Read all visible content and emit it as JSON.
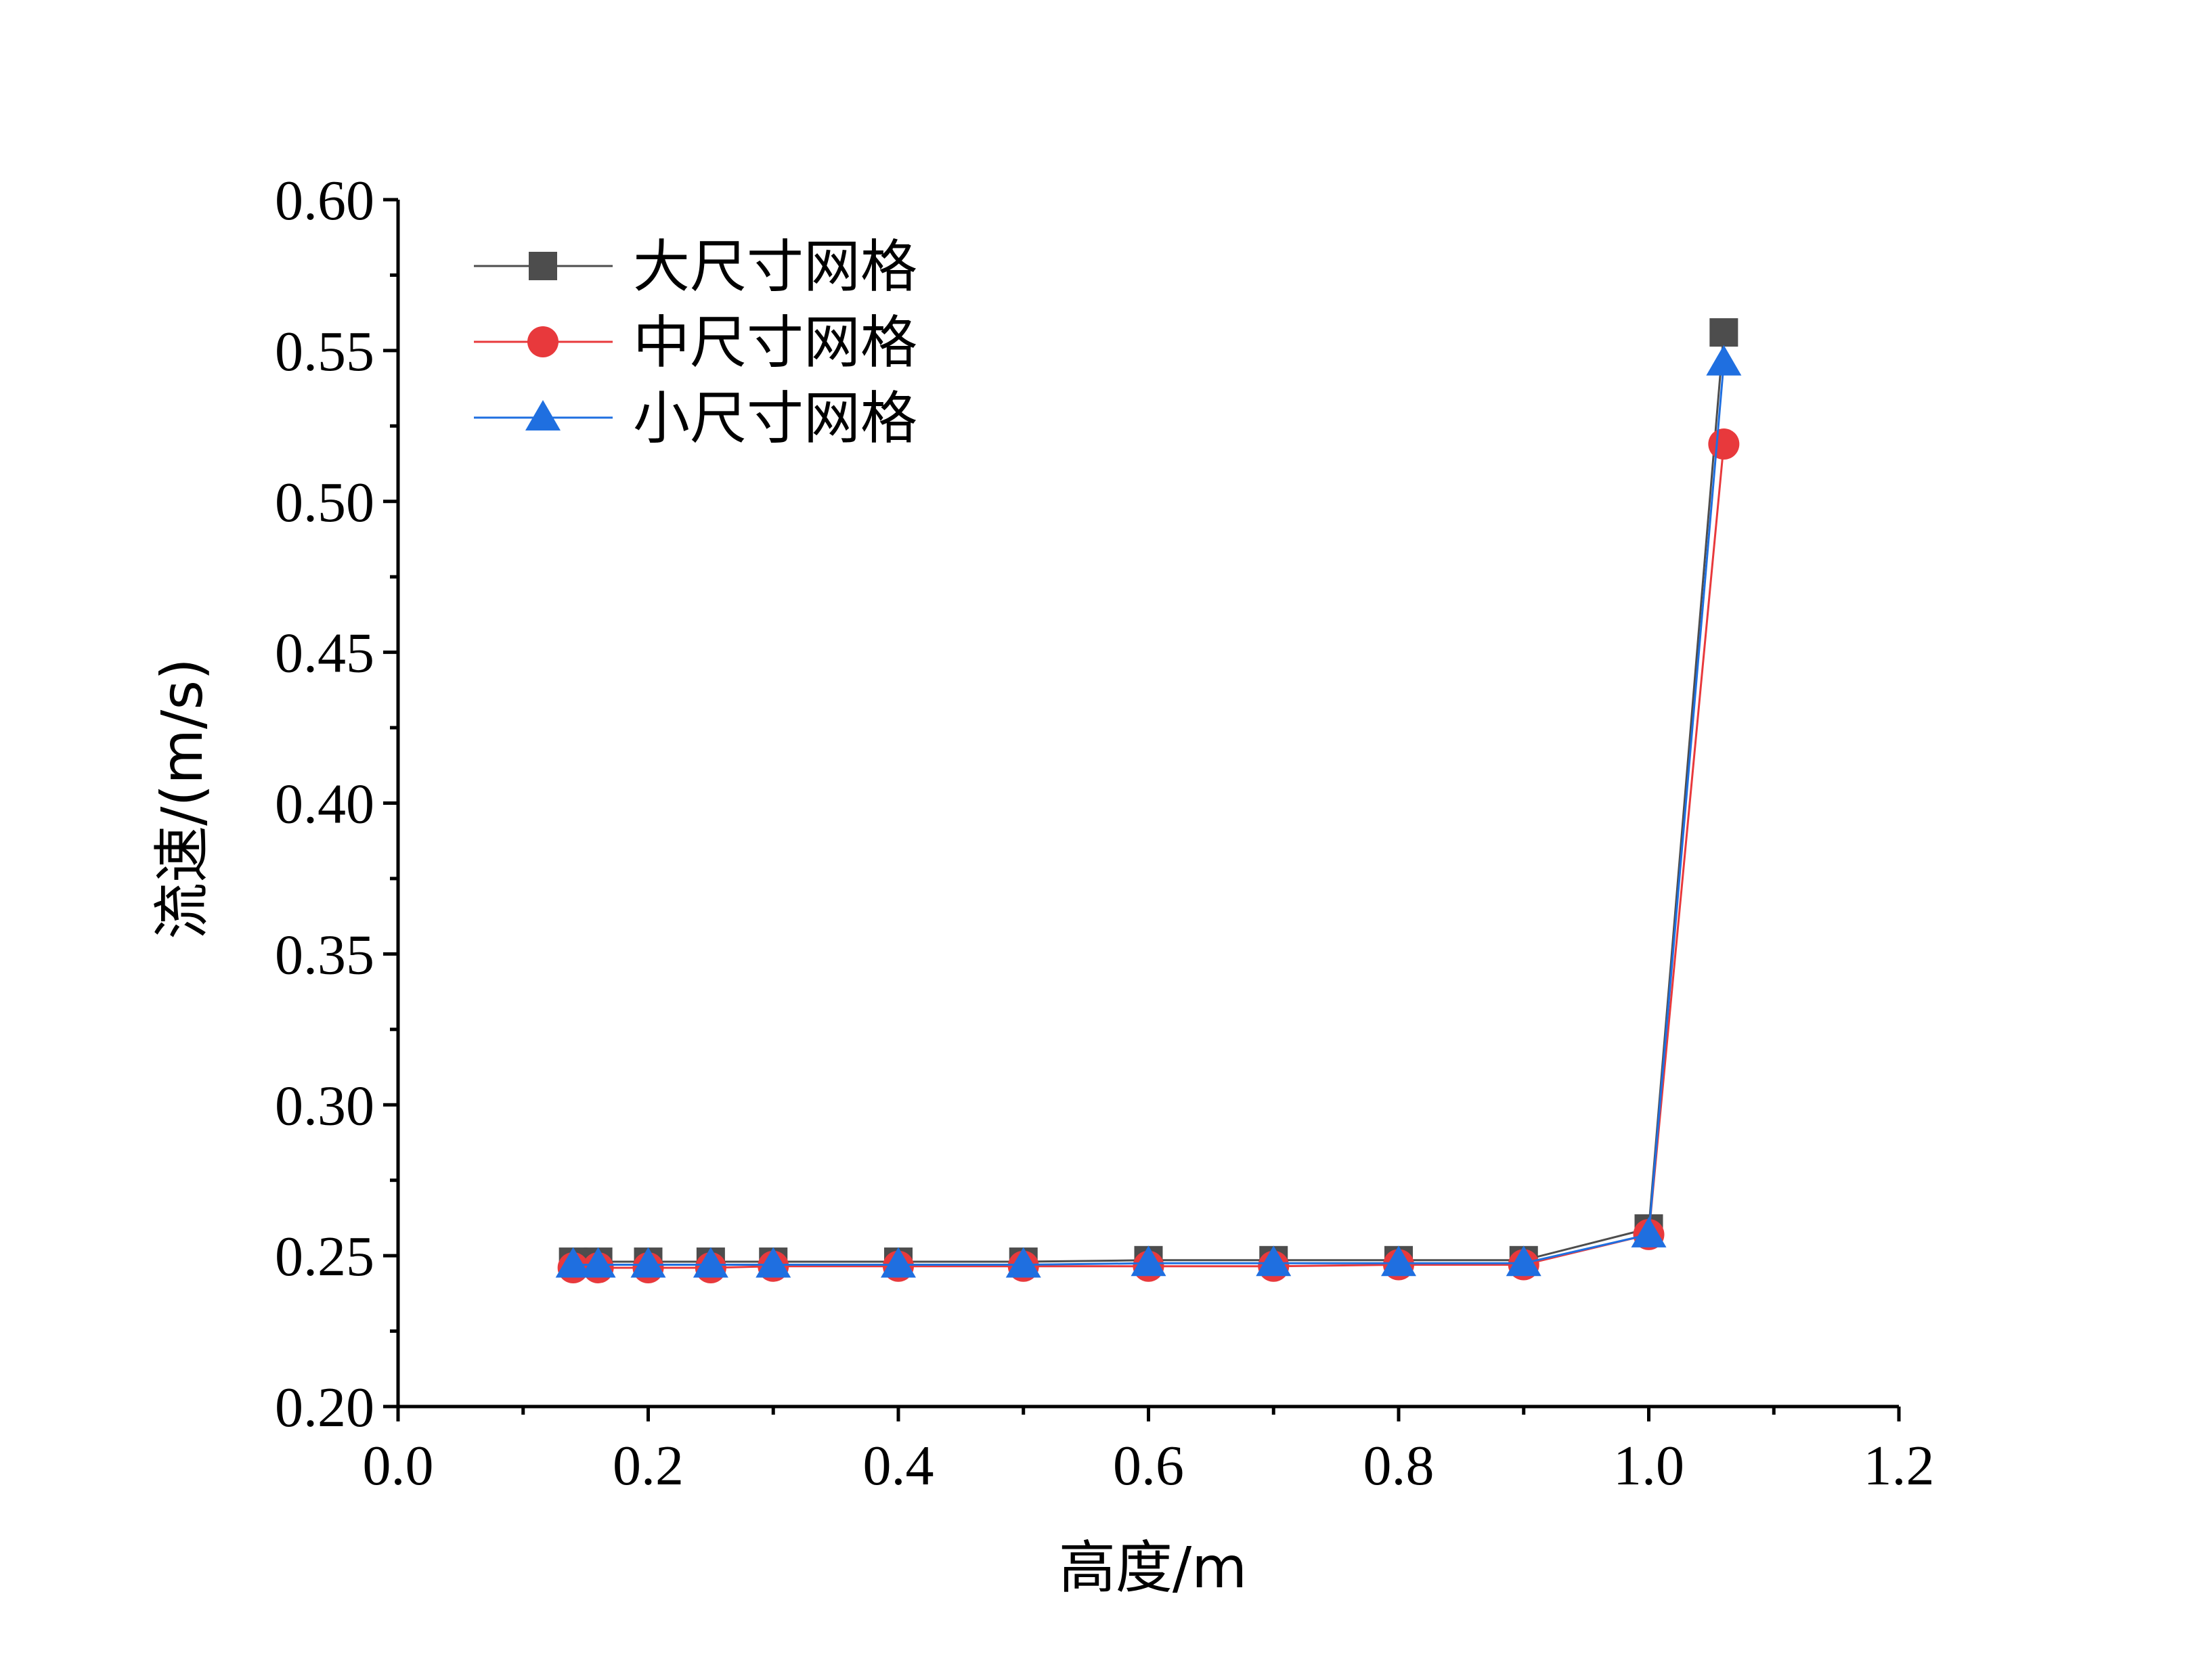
{
  "chart_data": {
    "type": "line",
    "title": "",
    "xlabel": "高度/m",
    "ylabel": "流速/(m/s)",
    "xlim": [
      0.0,
      1.2
    ],
    "ylim": [
      0.2,
      0.6
    ],
    "xticks": [
      "0.0",
      "0.2",
      "0.4",
      "0.6",
      "0.8",
      "1.0",
      "1.2"
    ],
    "yticks": [
      "0.20",
      "0.25",
      "0.30",
      "0.35",
      "0.40",
      "0.45",
      "0.50",
      "0.55",
      "0.60"
    ],
    "grid": false,
    "legend_position": "top-left",
    "x": [
      0.14,
      0.16,
      0.2,
      0.25,
      0.3,
      0.4,
      0.5,
      0.6,
      0.7,
      0.8,
      0.9,
      1.0,
      1.06
    ],
    "series": [
      {
        "name": "大尺寸网格",
        "marker": "square",
        "color": "#4d4d4d",
        "values": [
          0.248,
          0.248,
          0.248,
          0.248,
          0.248,
          0.248,
          0.248,
          0.2485,
          0.2485,
          0.2485,
          0.2485,
          0.259,
          0.556
        ]
      },
      {
        "name": "中尺寸网格",
        "marker": "circle",
        "color": "#e8393c",
        "values": [
          0.246,
          0.246,
          0.246,
          0.246,
          0.2465,
          0.2465,
          0.2465,
          0.2465,
          0.2465,
          0.247,
          0.247,
          0.257,
          0.519
        ]
      },
      {
        "name": "小尺寸网格",
        "marker": "triangle",
        "color": "#1f6fe0",
        "values": [
          0.247,
          0.247,
          0.247,
          0.247,
          0.247,
          0.247,
          0.247,
          0.2475,
          0.2475,
          0.2475,
          0.2475,
          0.257,
          0.546
        ]
      }
    ]
  }
}
